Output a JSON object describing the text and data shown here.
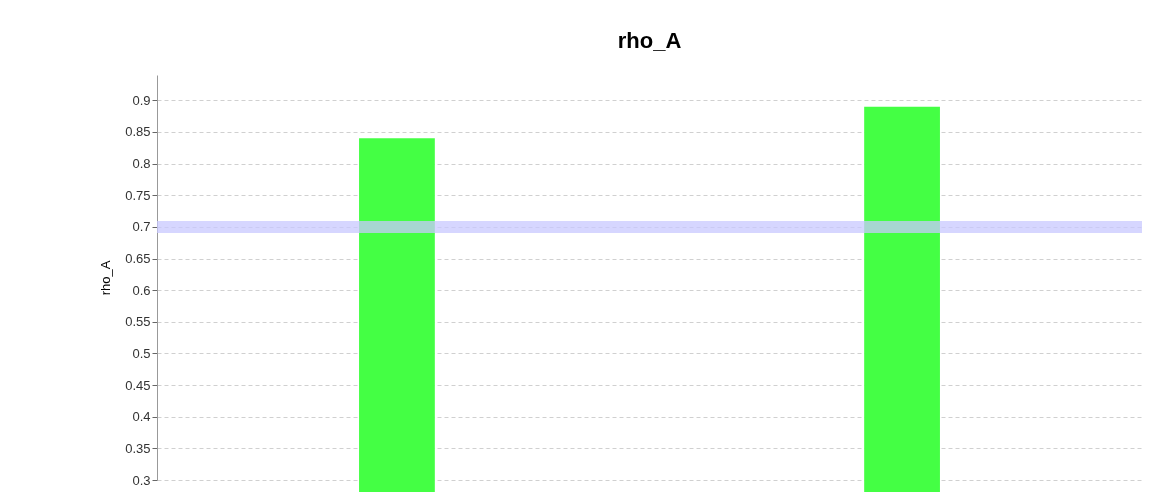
{
  "chart_data": {
    "type": "bar",
    "title": "rho_A",
    "ylabel": "rho_A",
    "categories": [
      null,
      null
    ],
    "values": [
      0.84,
      0.89
    ],
    "color": "#44ff44",
    "ylim": [
      0.3,
      0.94
    ],
    "yticks": [
      0.3,
      0.35,
      0.4,
      0.45,
      0.5,
      0.55,
      0.6,
      0.65,
      0.7,
      0.75,
      0.8,
      0.85,
      0.9
    ],
    "ref_lines": [
      {
        "axis": "y",
        "value": 0.7,
        "color": "#c8c8ff"
      }
    ],
    "grid": "y",
    "tick_labels": "y"
  }
}
